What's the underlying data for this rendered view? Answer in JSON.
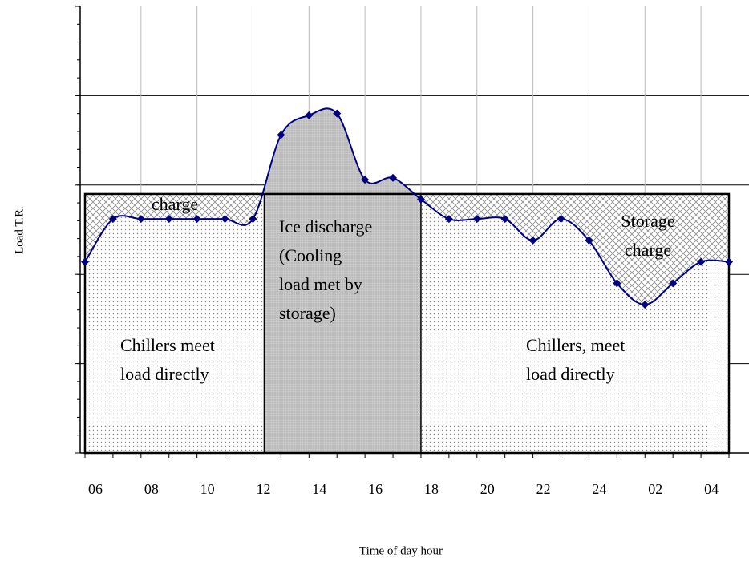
{
  "chart_data": {
    "type": "line",
    "x_label": "Time of day hour",
    "y_label": "Load  T.R.",
    "categories": [
      "06",
      null,
      "08",
      null,
      "10",
      null,
      "12",
      null,
      "14",
      null,
      "16",
      null,
      "18",
      null,
      "20",
      null,
      "22",
      null,
      "24",
      null,
      "02",
      null,
      "04",
      null
    ],
    "series": [
      {
        "color": "#000080",
        "values": [
          10.7,
          13.1,
          13.1,
          13.1,
          13.1,
          13.1,
          13.1,
          17.8,
          18.9,
          19.0,
          15.3,
          15.4,
          14.2,
          13.1,
          13.1,
          13.1,
          11.9,
          13.1,
          11.9,
          9.5,
          8.3,
          9.5,
          10.7,
          10.7
        ]
      }
    ],
    "ylim": [
      0,
      25
    ],
    "yticks": [
      0,
      5,
      10,
      15,
      20,
      25
    ],
    "grid": true,
    "chiller_capacity": 14.5,
    "ice_discharge_range": [
      6.4,
      12
    ],
    "annotations": {
      "charge": "charge",
      "ice_discharge": [
        "Ice discharge",
        "(Cooling",
        "load met by",
        "storage)"
      ],
      "chillers_left": [
        "Chillers meet",
        "load directly"
      ],
      "chillers_right": [
        "Chillers, meet",
        "load directly"
      ],
      "storage_charge": [
        "Storage",
        "charge"
      ]
    }
  }
}
